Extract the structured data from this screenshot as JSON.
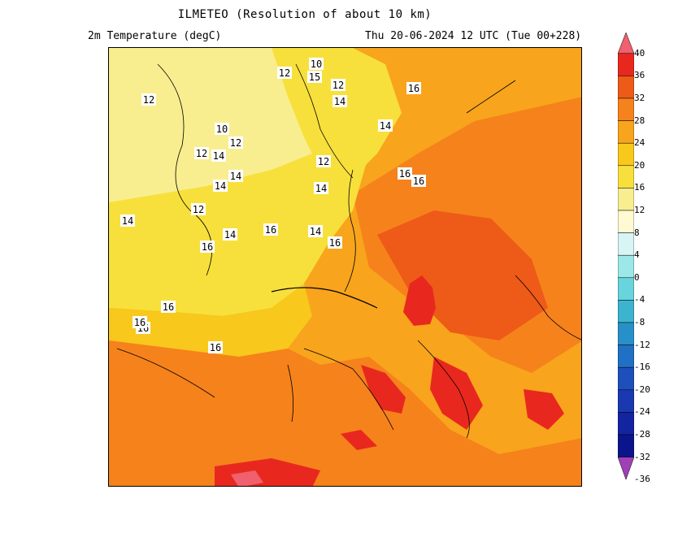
{
  "header": {
    "title": "ILMETEO (Resolution of about 10 km)",
    "variable": "2m Temperature (degC)",
    "valid_time": "Thu 20-06-2024 12 UTC (Tue 00+228)"
  },
  "legend": {
    "levels": [
      "40",
      "36",
      "32",
      "28",
      "24",
      "20",
      "16",
      "12",
      "8",
      "4",
      "0",
      "-4",
      "-8",
      "-12",
      "-16",
      "-20",
      "-24",
      "-28",
      "-32",
      "-36"
    ],
    "colors": [
      "#f0606e",
      "#e8281e",
      "#ee5a18",
      "#f6821c",
      "#f8a41c",
      "#f8c81c",
      "#f8e03c",
      "#f8ee90",
      "#fffad2",
      "#d8f4f4",
      "#9ce8e8",
      "#68d4dc",
      "#3cb4d0",
      "#2890c8",
      "#2070c4",
      "#1e50bc",
      "#1a38b0",
      "#1424a0",
      "#0c148c",
      "#a040b8"
    ]
  },
  "map": {
    "contour_labels": [
      "12",
      "10",
      "15",
      "12",
      "14",
      "16",
      "12",
      "10",
      "12",
      "14",
      "12",
      "12",
      "14",
      "14",
      "12",
      "14",
      "16",
      "14",
      "16",
      "14",
      "14",
      "16",
      "16",
      "16",
      "16",
      "16",
      "14",
      "16",
      "16"
    ]
  }
}
